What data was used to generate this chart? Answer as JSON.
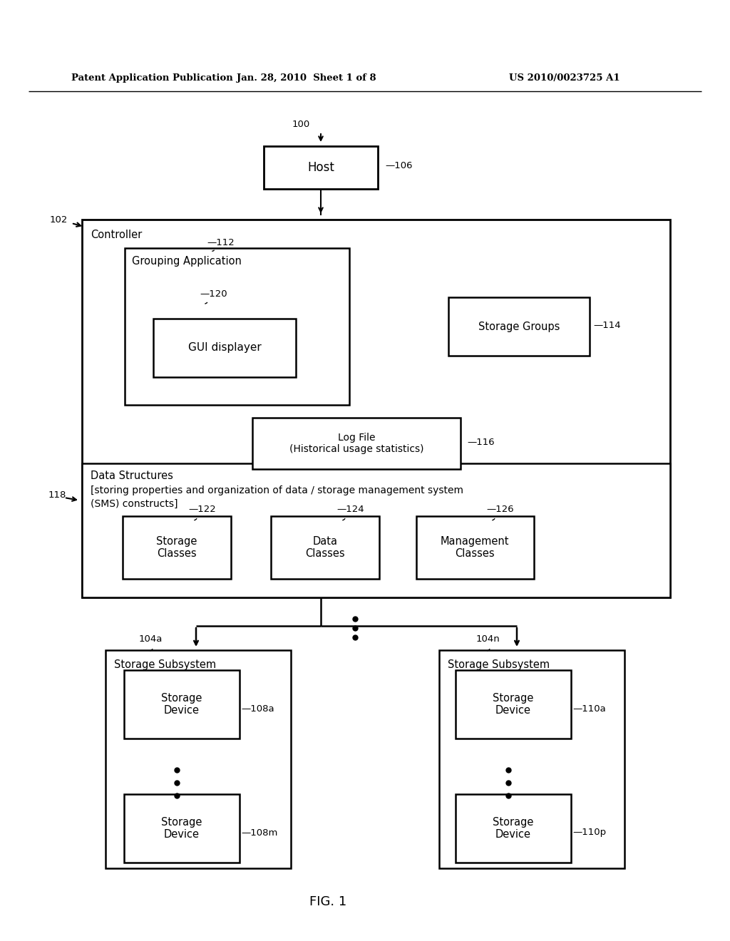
{
  "bg_color": "#ffffff",
  "header_left": "Patent Application Publication",
  "header_mid": "Jan. 28, 2010  Sheet 1 of 8",
  "header_right": "US 2010/0023725 A1",
  "fig_label": "FIG. 1"
}
